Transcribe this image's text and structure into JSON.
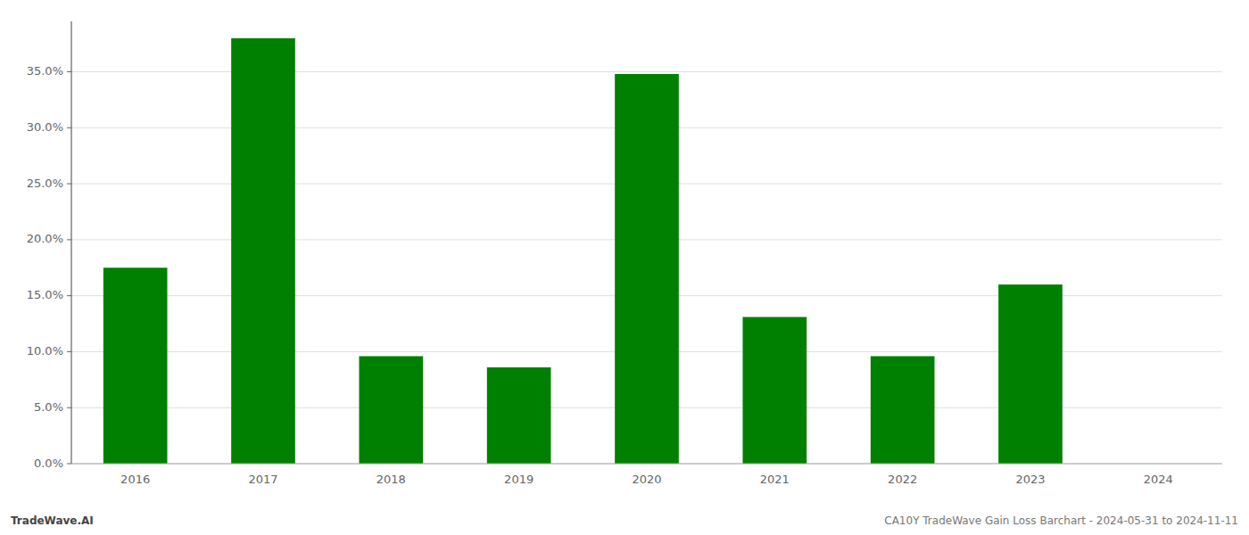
{
  "chart_data": {
    "type": "bar",
    "categories": [
      "2016",
      "2017",
      "2018",
      "2019",
      "2020",
      "2021",
      "2022",
      "2023",
      "2024"
    ],
    "values": [
      0.175,
      0.38,
      0.096,
      0.086,
      0.348,
      0.131,
      0.096,
      0.16,
      0.0
    ],
    "color": "#008000",
    "ylim": [
      0,
      0.395
    ],
    "yticks": [
      {
        "value": 0.0,
        "label": "0.0%"
      },
      {
        "value": 0.05,
        "label": "5.0%"
      },
      {
        "value": 0.1,
        "label": "10.0%"
      },
      {
        "value": 0.15,
        "label": "15.0%"
      },
      {
        "value": 0.2,
        "label": "20.0%"
      },
      {
        "value": 0.25,
        "label": "25.0%"
      },
      {
        "value": 0.3,
        "label": "30.0%"
      },
      {
        "value": 0.35,
        "label": "35.0%"
      }
    ],
    "grid": true,
    "annotations": [
      "TradeWave.AI",
      "CA10Y TradeWave Gain Loss Barchart - 2024-05-31 to 2024-11-11"
    ]
  }
}
